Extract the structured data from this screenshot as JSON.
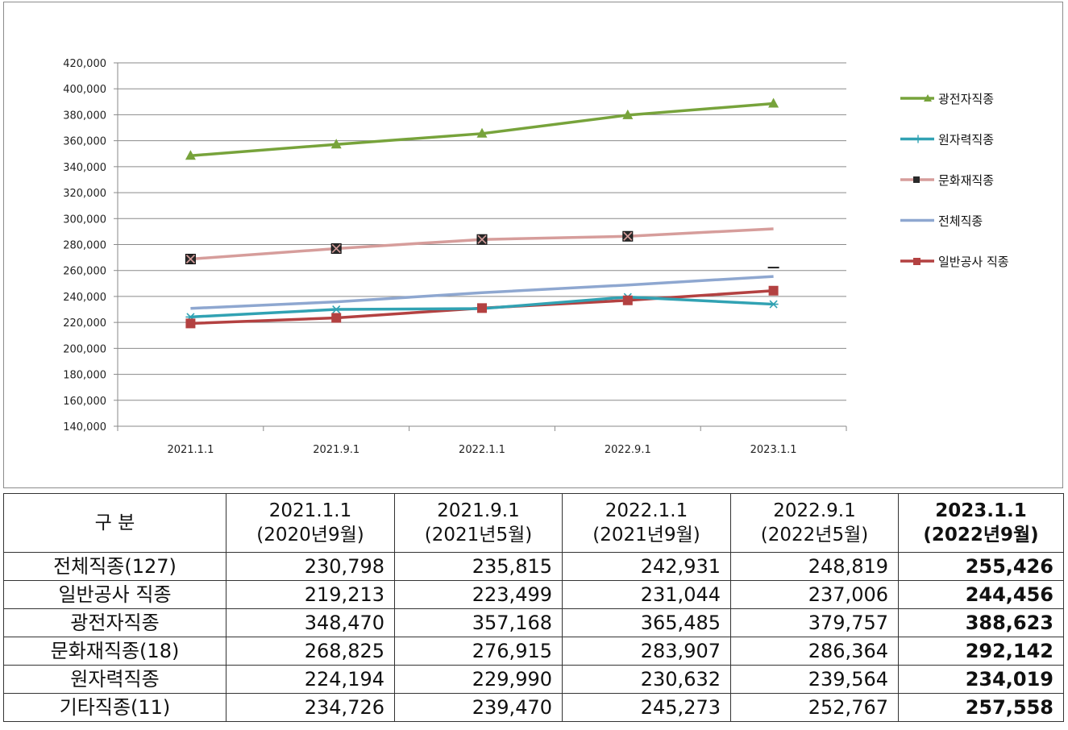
{
  "chart_data": {
    "type": "line",
    "categories": [
      "2021.1.1",
      "2021.9.1",
      "2022.1.1",
      "2022.9.1",
      "2023.1.1"
    ],
    "ylim": [
      140000,
      420000
    ],
    "ytick_step": 20000,
    "ytick_labels": [
      "420,000",
      "400,000",
      "380,000",
      "360,000",
      "340,000",
      "320,000",
      "300,000",
      "280,000",
      "260,000",
      "240,000",
      "220,000",
      "200,000",
      "180,000",
      "160,000",
      "140,000"
    ],
    "grid": true,
    "legend_position": "right",
    "series": [
      {
        "name": "광전자직종",
        "color": "#77a33b",
        "marker": "triangle",
        "values": [
          348470,
          357168,
          365485,
          379757,
          388623
        ]
      },
      {
        "name": "원자력직종",
        "color": "#31a2b3",
        "marker": "star",
        "values": [
          224194,
          229990,
          230632,
          239564,
          234019
        ]
      },
      {
        "name": "문화재직종",
        "color": "#d69d9b",
        "marker": "x-square",
        "values": [
          268825,
          276915,
          283907,
          286364,
          292142
        ]
      },
      {
        "name": "전체직종",
        "color": "#8ea7d0",
        "marker": "dash",
        "values": [
          230798,
          235815,
          242931,
          248819,
          255426
        ]
      },
      {
        "name": "일반공사 직종",
        "color": "#b34141",
        "marker": "square",
        "values": [
          219213,
          223499,
          231044,
          237006,
          244456
        ]
      }
    ]
  },
  "table": {
    "header_label": "구 분",
    "columns": [
      {
        "date": "2021.1.1",
        "sub": "(2020년9월)"
      },
      {
        "date": "2021.9.1",
        "sub": "(2021년5월)"
      },
      {
        "date": "2022.1.1",
        "sub": "(2021년9월)"
      },
      {
        "date": "2022.9.1",
        "sub": "(2022년5월)"
      },
      {
        "date": "2023.1.1",
        "sub": "(2022년9월)"
      }
    ],
    "rows": [
      {
        "label": "전체직종(127)",
        "values": [
          "230,798",
          "235,815",
          "242,931",
          "248,819",
          "255,426"
        ]
      },
      {
        "label": "일반공사 직종",
        "values": [
          "219,213",
          "223,499",
          "231,044",
          "237,006",
          "244,456"
        ]
      },
      {
        "label": "광전자직종",
        "values": [
          "348,470",
          "357,168",
          "365,485",
          "379,757",
          "388,623"
        ]
      },
      {
        "label": "문화재직종(18)",
        "values": [
          "268,825",
          "276,915",
          "283,907",
          "286,364",
          "292,142"
        ]
      },
      {
        "label": "원자력직종",
        "values": [
          "224,194",
          "229,990",
          "230,632",
          "239,564",
          "234,019"
        ]
      },
      {
        "label": "기타직종(11)",
        "values": [
          "234,726",
          "239,470",
          "245,273",
          "252,767",
          "257,558"
        ]
      }
    ]
  }
}
